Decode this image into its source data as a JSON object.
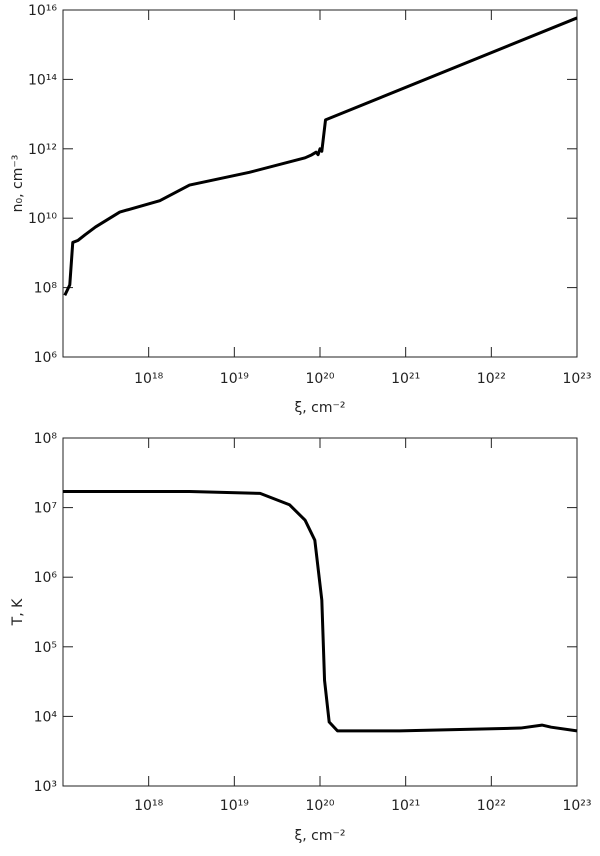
{
  "chart_data": [
    {
      "type": "line",
      "xlabel": "ξ, cm⁻²",
      "ylabel": "n₀, cm⁻³",
      "log_x": true,
      "log_y": true,
      "xlim": [
        1e+17,
        1e+23
      ],
      "ylim": [
        1000000.0,
        1e+16
      ],
      "xticks": [
        {
          "value": 1e+18,
          "label": "10¹⁸"
        },
        {
          "value": 1e+19,
          "label": "10¹⁹"
        },
        {
          "value": 1e+20,
          "label": "10²⁰"
        },
        {
          "value": 1e+21,
          "label": "10²¹"
        },
        {
          "value": 1e+22,
          "label": "10²²"
        },
        {
          "value": 1e+23,
          "label": "10²³"
        }
      ],
      "yticks": [
        {
          "value": 1000000.0,
          "label": "10⁶"
        },
        {
          "value": 100000000.0,
          "label": "10⁸"
        },
        {
          "value": 10000000000.0,
          "label": "10¹⁰"
        },
        {
          "value": 1000000000000.0,
          "label": "10¹²"
        },
        {
          "value": 100000000000000.0,
          "label": "10¹⁴"
        },
        {
          "value": 1e+16,
          "label": "10¹⁶"
        }
      ],
      "x": [
        1.05e+17,
        1.2e+17,
        1.3e+17,
        1.5e+17,
        1.8e+17,
        2.4e+17,
        4.6e+17,
        1.35e+18,
        3e+18,
        1.5e+19,
        6.7e+19,
        8e+19,
        9e+19,
        9.5e+19,
        1e+20,
        1.05e+20,
        1.16e+20,
        1e+23
      ],
      "series": [
        {
          "color": "#000000",
          "values": [
            60000000.0,
            120000000.0,
            2000000000.0,
            2300000000.0,
            3300000000.0,
            5600000000.0,
            15000000000.0,
            32000000000.0,
            90000000000.0,
            210000000000.0,
            550000000000.0,
            670000000000.0,
            800000000000.0,
            680000000000.0,
            1000000000000.0,
            850000000000.0,
            6800000000000.0,
            5900000000000000.0
          ]
        }
      ]
    },
    {
      "type": "line",
      "xlabel": "ξ, cm⁻²",
      "ylabel": "T, K",
      "log_x": true,
      "log_y": true,
      "xlim": [
        1e+17,
        1e+23
      ],
      "ylim": [
        1000.0,
        100000000.0
      ],
      "xticks": [
        {
          "value": 1e+18,
          "label": "10¹⁸"
        },
        {
          "value": 1e+19,
          "label": "10¹⁹"
        },
        {
          "value": 1e+20,
          "label": "10²⁰"
        },
        {
          "value": 1e+21,
          "label": "10²¹"
        },
        {
          "value": 1e+22,
          "label": "10²²"
        },
        {
          "value": 1e+23,
          "label": "10²³"
        }
      ],
      "yticks": [
        {
          "value": 1000.0,
          "label": "10³"
        },
        {
          "value": 10000.0,
          "label": "10⁴"
        },
        {
          "value": 100000.0,
          "label": "10⁵"
        },
        {
          "value": 1000000.0,
          "label": "10⁶"
        },
        {
          "value": 10000000.0,
          "label": "10⁷"
        },
        {
          "value": 100000000.0,
          "label": "10⁸"
        }
      ],
      "x": [
        1e+17,
        3e+18,
        2e+19,
        4.4e+19,
        6.7e+19,
        8.7e+19,
        1.05e+20,
        1.13e+20,
        1.28e+20,
        1.6e+20,
        8.5e+20,
        2.2e+22,
        3.9e+22,
        5e+22,
        1e+23
      ],
      "series": [
        {
          "color": "#000000",
          "values": [
            17000000.0,
            17000000.0,
            16000000.0,
            11000000.0,
            6600000.0,
            3400000.0,
            470000.0,
            33000.0,
            8300.0,
            6200.0,
            6200.0,
            6800.0,
            7500.0,
            7000.0,
            6200.0
          ]
        }
      ]
    }
  ]
}
